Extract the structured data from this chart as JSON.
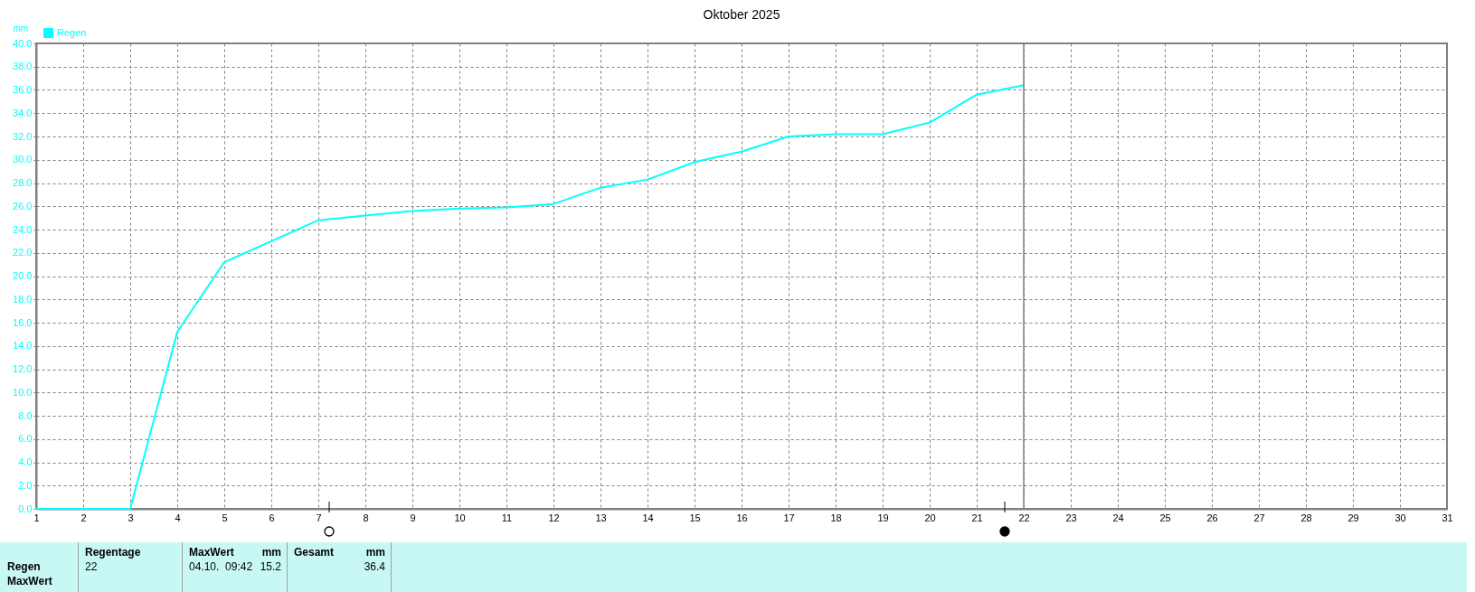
{
  "chart_data": {
    "type": "line",
    "title": "Oktober 2025",
    "ylabel": "mm",
    "x": [
      1,
      2,
      3,
      4,
      5,
      6,
      7,
      8,
      9,
      10,
      11,
      12,
      13,
      14,
      15,
      16,
      17,
      18,
      19,
      20,
      21,
      22
    ],
    "series": [
      {
        "name": "Regen",
        "color": "#00ffff",
        "values": [
          0,
          0,
          0,
          15.2,
          21.2,
          23.0,
          24.8,
          25.2,
          25.6,
          25.8,
          25.9,
          26.2,
          27.6,
          28.3,
          29.8,
          30.7,
          32.0,
          32.2,
          32.2,
          33.2,
          35.6,
          36.4
        ]
      }
    ],
    "xlim": [
      1,
      31
    ],
    "xticks": [
      1,
      2,
      3,
      4,
      5,
      6,
      7,
      8,
      9,
      10,
      11,
      12,
      13,
      14,
      15,
      16,
      17,
      18,
      19,
      20,
      21,
      22,
      23,
      24,
      25,
      26,
      27,
      28,
      29,
      30,
      31
    ],
    "ylim": [
      0,
      40
    ],
    "yticks": [
      {
        "value": 0,
        "label": "0.0"
      },
      {
        "value": 2,
        "label": "2.0"
      },
      {
        "value": 4,
        "label": "4.0"
      },
      {
        "value": 6,
        "label": "6.0"
      },
      {
        "value": 8,
        "label": "8.0"
      },
      {
        "value": 10,
        "label": "10.0"
      },
      {
        "value": 12,
        "label": "12.0"
      },
      {
        "value": 14,
        "label": "14.0"
      },
      {
        "value": 16,
        "label": "16.0"
      },
      {
        "value": 18,
        "label": "18.0"
      },
      {
        "value": 20,
        "label": "20.0"
      },
      {
        "value": 22,
        "label": "22.0"
      },
      {
        "value": 24,
        "label": "24.0"
      },
      {
        "value": 26,
        "label": "26.0"
      },
      {
        "value": 28,
        "label": "28.0"
      },
      {
        "value": 30,
        "label": "30.0"
      },
      {
        "value": 32,
        "label": "32.0"
      },
      {
        "value": 34,
        "label": "34.0"
      },
      {
        "value": 36,
        "label": "36.0"
      },
      {
        "value": 38,
        "label": "38.0"
      },
      {
        "value": 40,
        "label": "40.0"
      }
    ],
    "grid": true,
    "legend": "top left",
    "ref_lines": [
      {
        "axis": "x",
        "value": 22,
        "color": "#808080"
      }
    ],
    "annotations": [
      "Regentage",
      "22",
      "MaxWert",
      "mm",
      "04.10.  09:42",
      "15.2",
      "Gesamt",
      "mm",
      "36.4",
      "Regen",
      "MaxWert"
    ]
  }
}
